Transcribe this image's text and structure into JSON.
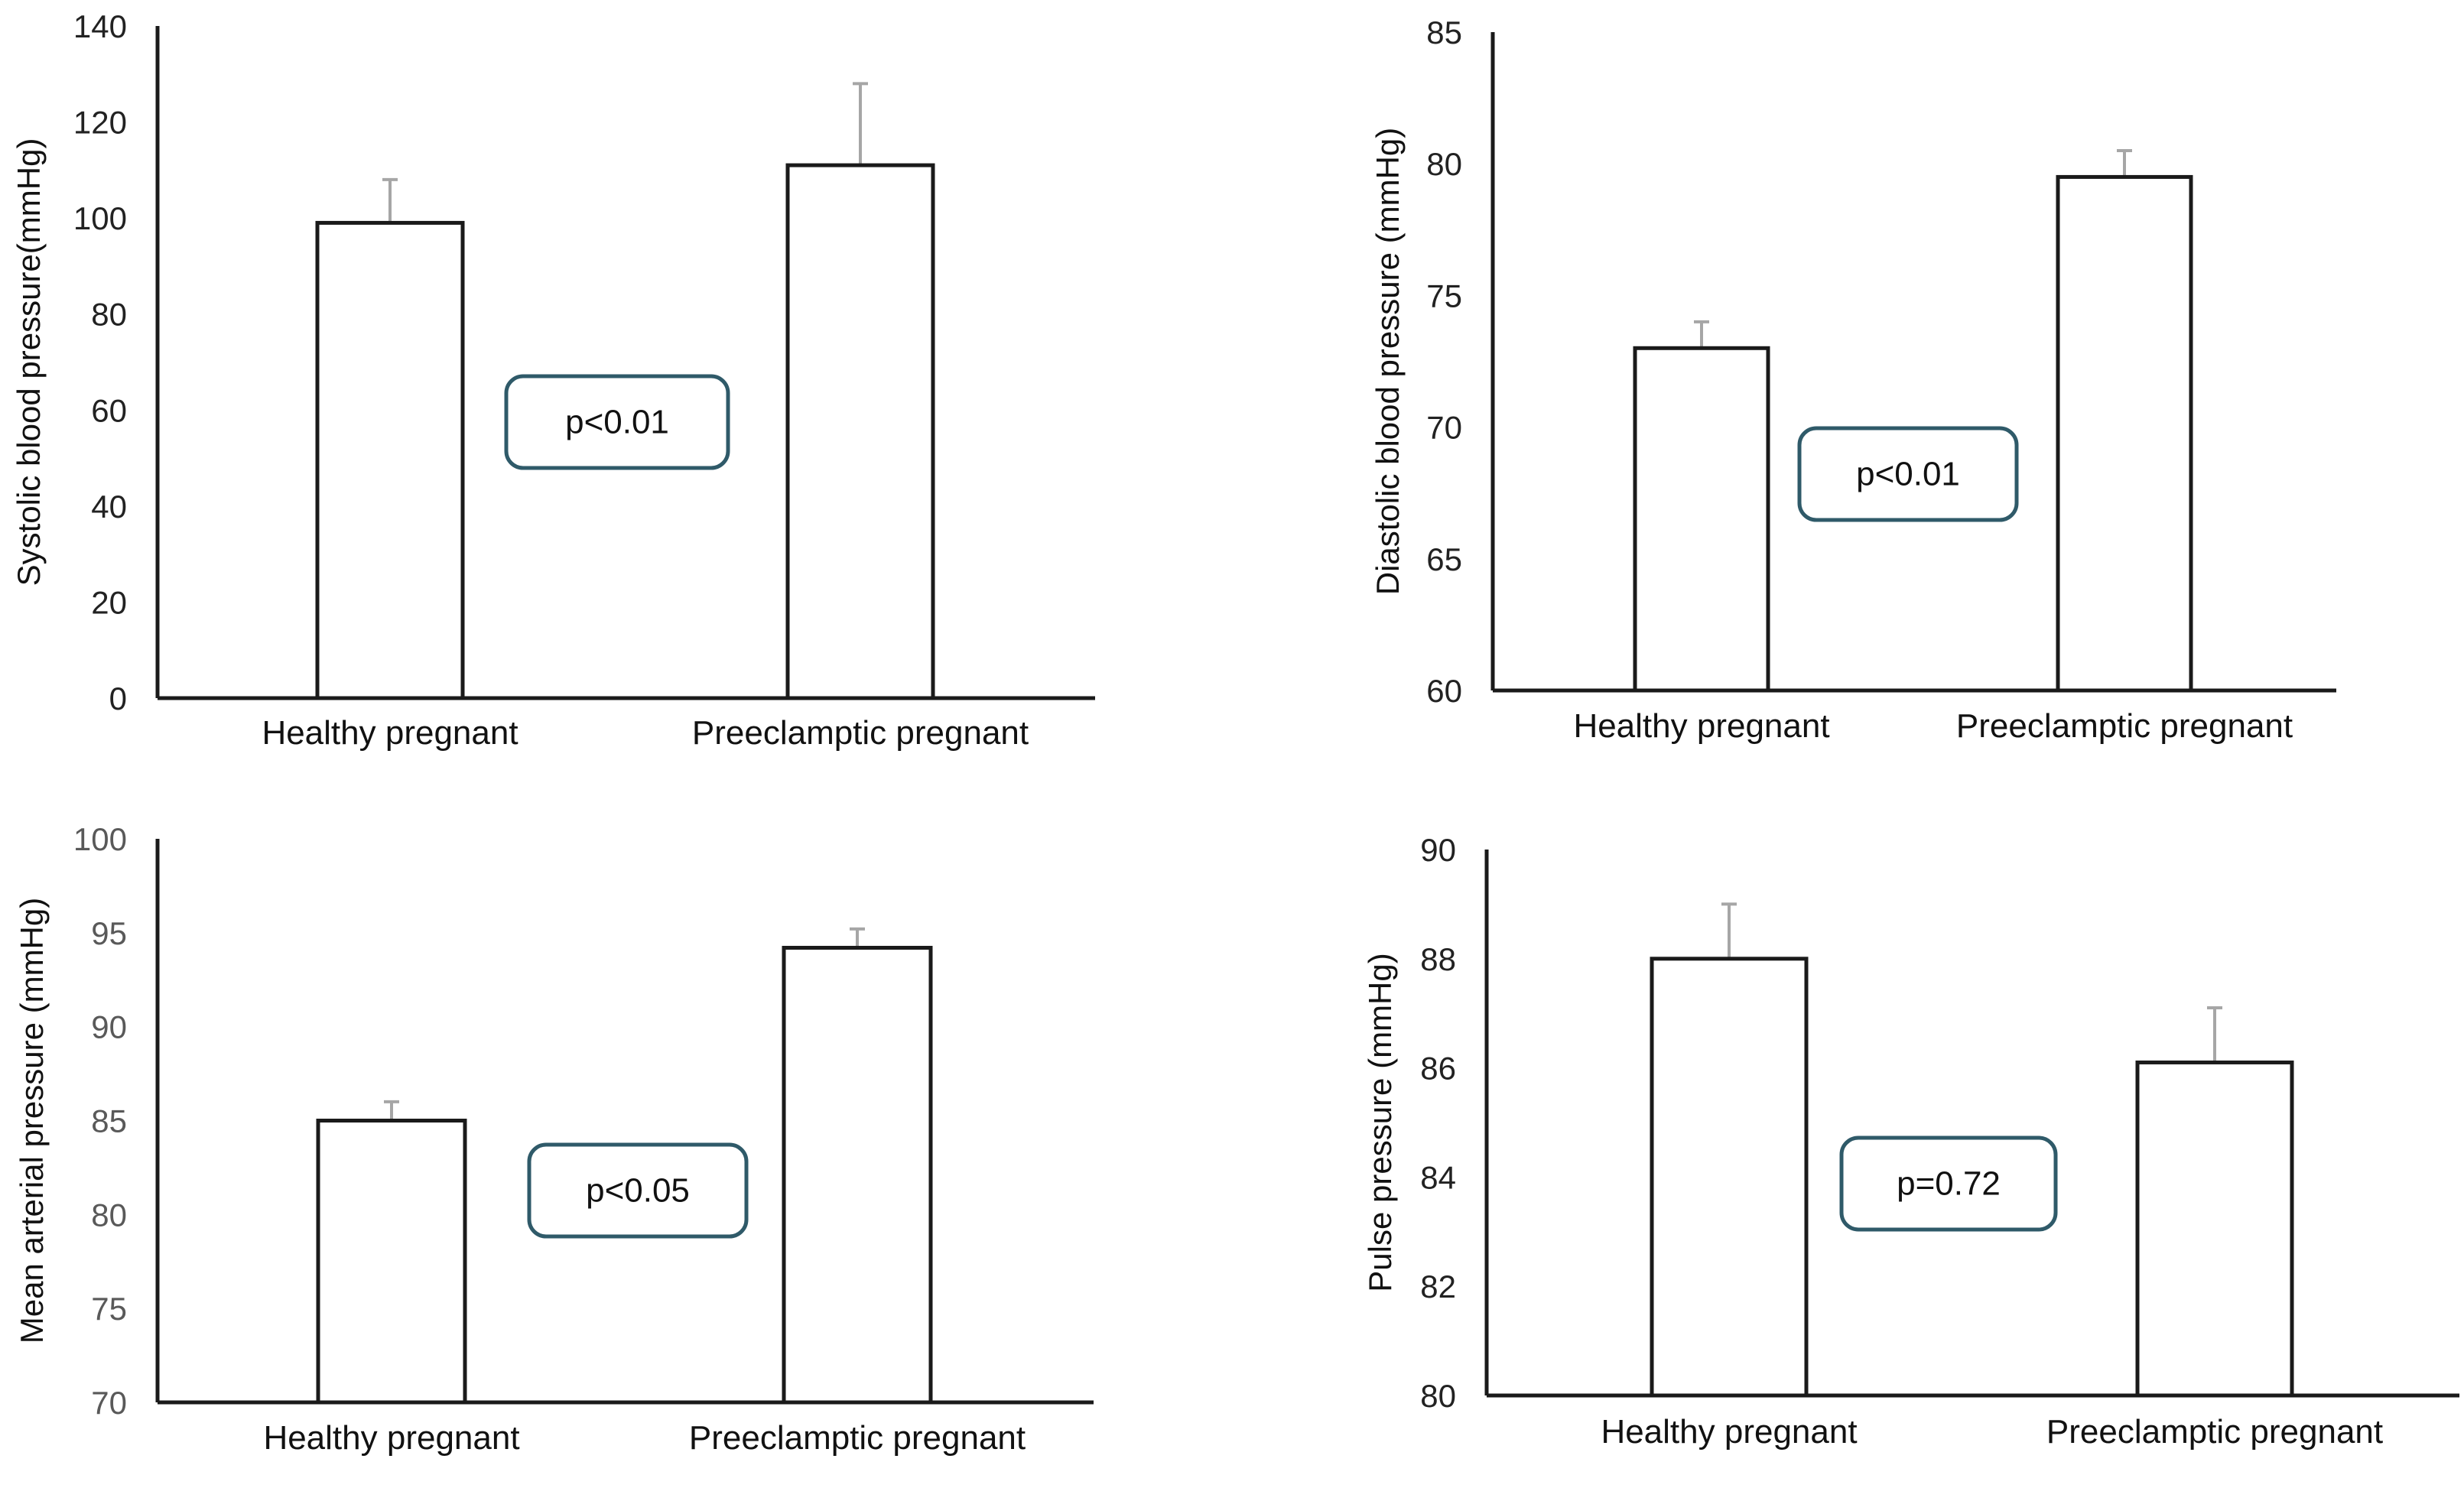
{
  "chart_data": [
    {
      "type": "bar",
      "title": "",
      "xlabel": "",
      "ylabel": "Systolic blood pressure(mmHg)",
      "categories": [
        "Healthy pregnant",
        "Preeclamptic pregnant"
      ],
      "values": [
        99,
        111
      ],
      "errors": [
        9,
        17
      ],
      "ylim": [
        0,
        140
      ],
      "yticks": [
        0,
        20,
        40,
        60,
        80,
        100,
        120,
        140
      ],
      "ytick_labels": [
        "0",
        "20",
        "40",
        "60",
        "80",
        "100",
        "120",
        "140"
      ],
      "annotation": "p<0.01",
      "grid": false,
      "tick_color": "#222222"
    },
    {
      "type": "bar",
      "title": "",
      "xlabel": "",
      "ylabel": "Diastolic blood pressure (mmHg)",
      "categories": [
        "Healthy pregnant",
        "Preeclamptic pregnant"
      ],
      "values": [
        73,
        79.5
      ],
      "errors": [
        1,
        1
      ],
      "ylim": [
        60,
        85
      ],
      "yticks": [
        60,
        65,
        70,
        75,
        80,
        85
      ],
      "ytick_labels": [
        "60",
        "65",
        "70",
        "75",
        "80",
        "85"
      ],
      "annotation": "p<0.01",
      "grid": false,
      "tick_color": "#222222"
    },
    {
      "type": "bar",
      "title": "",
      "xlabel": "",
      "ylabel": "Mean arterial pressure (mmHg)",
      "categories": [
        "Healthy pregnant",
        "Preeclamptic pregnant"
      ],
      "values": [
        85,
        94.2
      ],
      "errors": [
        1,
        1
      ],
      "ylim": [
        70,
        100
      ],
      "yticks": [
        70,
        75,
        80,
        85,
        90,
        95,
        100
      ],
      "ytick_labels": [
        "70",
        "75",
        "80",
        "85",
        "90",
        "95",
        "100"
      ],
      "annotation": "p<0.05",
      "grid": false,
      "tick_color": "#595959"
    },
    {
      "type": "bar",
      "title": "",
      "xlabel": "",
      "ylabel": "Pulse pressure (mmHg)",
      "categories": [
        "Healthy pregnant",
        "Preeclamptic pregnant"
      ],
      "values": [
        88,
        86.1
      ],
      "errors": [
        1,
        1
      ],
      "ylim": [
        80,
        90
      ],
      "yticks": [
        80,
        82,
        84,
        86,
        88,
        90
      ],
      "ytick_labels": [
        "80",
        "82",
        "84",
        "86",
        "88",
        "90"
      ],
      "annotation": "p=0.72",
      "grid": false,
      "tick_color": "#222222"
    }
  ]
}
